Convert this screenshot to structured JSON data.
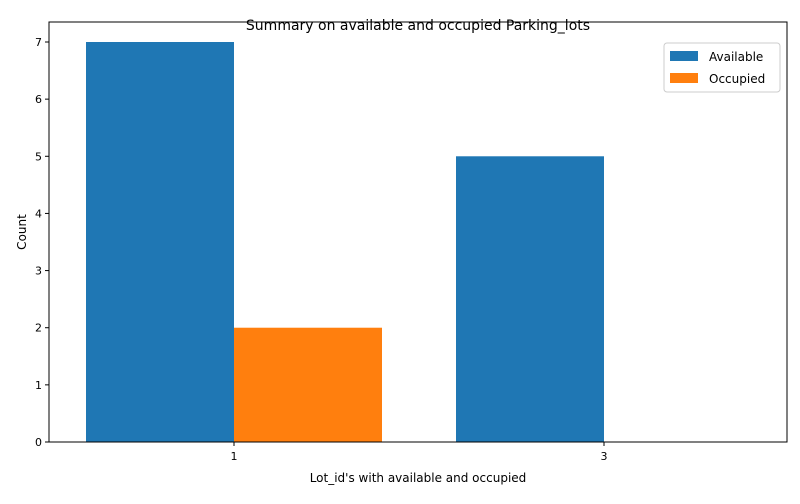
{
  "chart_data": {
    "type": "bar",
    "title": "Summary on available and occupied Parking_lots",
    "xlabel": "Lot_id's with available and occupied",
    "ylabel": "Count",
    "categories": [
      "1",
      "3"
    ],
    "ylim": [
      0,
      7.35
    ],
    "yticks": [
      0,
      1,
      2,
      3,
      4,
      5,
      6,
      7
    ],
    "grid": false,
    "legend_position": "top-right",
    "series": [
      {
        "name": "Available",
        "color": "#1f77b4",
        "values": [
          7,
          5
        ]
      },
      {
        "name": "Occupied",
        "color": "#ff7f0e",
        "values": [
          2,
          0
        ]
      }
    ]
  }
}
